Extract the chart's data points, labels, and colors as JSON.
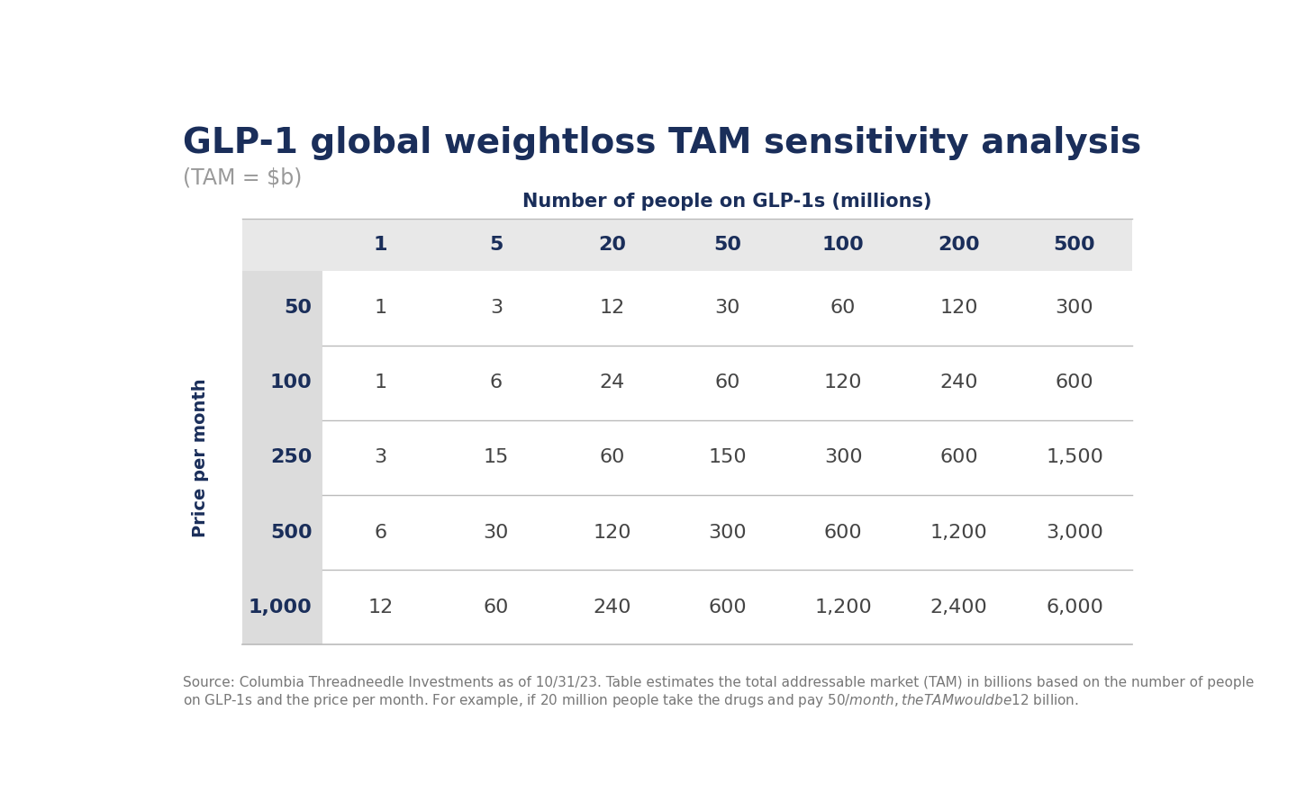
{
  "title": "GLP-1 global weightloss TAM sensitivity analysis",
  "subtitle": "(TAM = $b)",
  "col_header_label": "Number of people on GLP-1s (millions)",
  "row_header_label": "Price per month",
  "col_headers": [
    "1",
    "5",
    "20",
    "50",
    "100",
    "200",
    "500"
  ],
  "row_headers": [
    "50",
    "100",
    "250",
    "500",
    "1,000"
  ],
  "table_data": [
    [
      "1",
      "3",
      "12",
      "30",
      "60",
      "120",
      "300"
    ],
    [
      "1",
      "6",
      "24",
      "60",
      "120",
      "240",
      "600"
    ],
    [
      "3",
      "15",
      "60",
      "150",
      "300",
      "600",
      "1,500"
    ],
    [
      "6",
      "30",
      "120",
      "300",
      "600",
      "1,200",
      "3,000"
    ],
    [
      "12",
      "60",
      "240",
      "600",
      "1,200",
      "2,400",
      "6,000"
    ]
  ],
  "source_text": "Source: Columbia Threadneedle Investments as of 10/31/23. Table estimates the total addressable market (TAM) in billions based on the number of people\non GLP-1s and the price per month. For example, if 20 million people take the drugs and pay $50/month, the TAM would be $12 billion.",
  "title_color": "#1a2e5a",
  "subtitle_color": "#999999",
  "header_text_color": "#1a2e5a",
  "row_header_text_color": "#1a2e5a",
  "data_text_color": "#444444",
  "col_header_bg": "#e8e8e8",
  "row_label_bg": "#dcdcdc",
  "data_bg": "#ffffff",
  "bg_color": "#ffffff",
  "source_color": "#777777",
  "divider_color": "#bbbbbb",
  "title_fontsize": 28,
  "subtitle_fontsize": 17,
  "col_header_label_fontsize": 15,
  "header_fontsize": 16,
  "data_fontsize": 16,
  "row_label_fontsize": 16,
  "source_fontsize": 11,
  "price_label_fontsize": 14
}
